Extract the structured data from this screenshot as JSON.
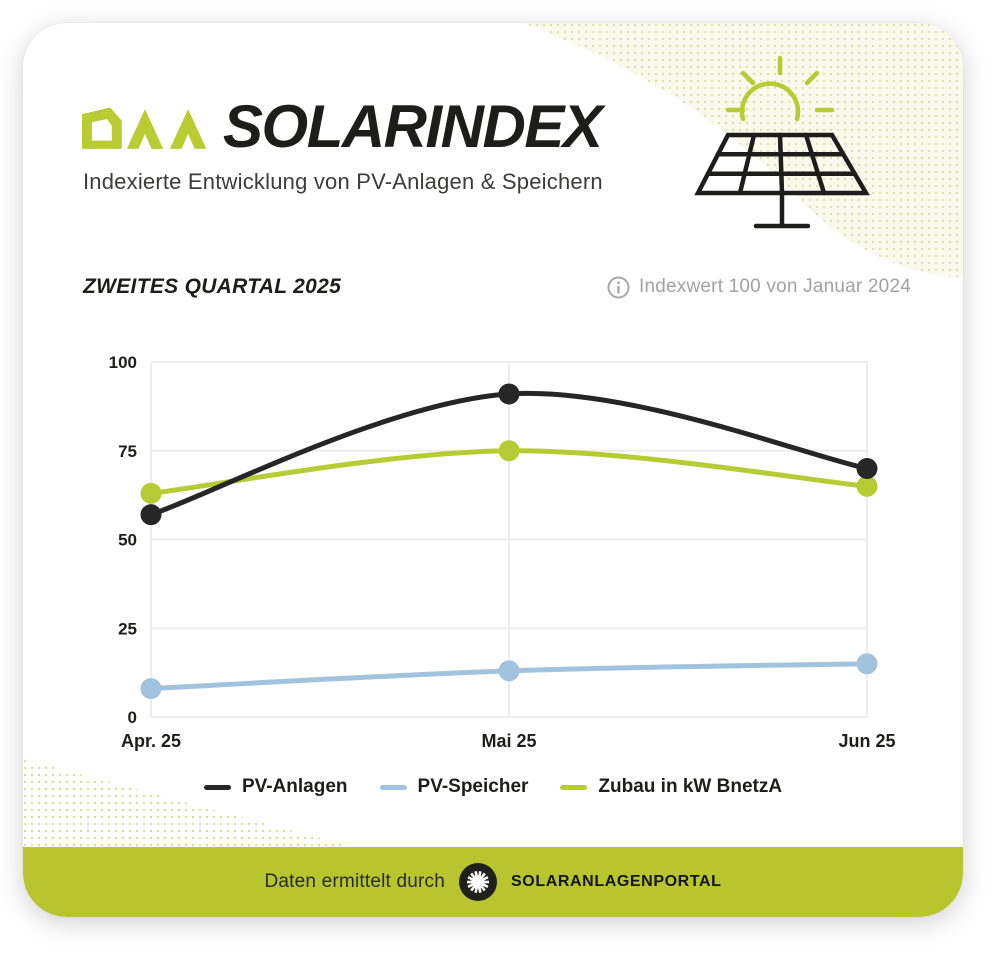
{
  "header": {
    "logo_text": "DAA",
    "title": "SOLARINDEX",
    "subtitle": "Indexierte Entwicklung von PV-Anlagen & Speichern"
  },
  "section": {
    "heading": "ZWEITES QUARTAL 2025",
    "index_note": "Indexwert 100 von Januar 2024"
  },
  "chart_data": {
    "type": "line",
    "categories": [
      "Apr. 25",
      "Mai 25",
      "Jun 25"
    ],
    "series": [
      {
        "name": "PV-Anlagen",
        "color": "#262626",
        "values": [
          57,
          91,
          70
        ]
      },
      {
        "name": "PV-Speicher",
        "color": "#a2c3de",
        "values": [
          8,
          13,
          15
        ]
      },
      {
        "name": "Zubau in kW BnetzA",
        "color": "#b5cc34",
        "values": [
          63,
          75,
          65
        ]
      }
    ],
    "yticks": [
      0,
      25,
      50,
      75,
      100
    ],
    "ylim": [
      0,
      100
    ],
    "grid": true,
    "line_style": "smooth",
    "markers": "filled-circles",
    "legend_position": "bottom"
  },
  "footer": {
    "text": "Daten ermittelt durch",
    "brand": "SOLARANLAGENPORTAL"
  },
  "colors": {
    "accent_green": "#b5cc34",
    "footer_green": "#b8c52f",
    "line_black": "#262626",
    "line_blue": "#a2c3de",
    "gridline": "#ededed",
    "note_gray": "#a2a2a2",
    "dot_pattern": "#d6e095"
  },
  "icons": {
    "top_right": "solar-panel-sun-icon",
    "note": "info-icon",
    "footer": "sunburst-logo-icon"
  }
}
